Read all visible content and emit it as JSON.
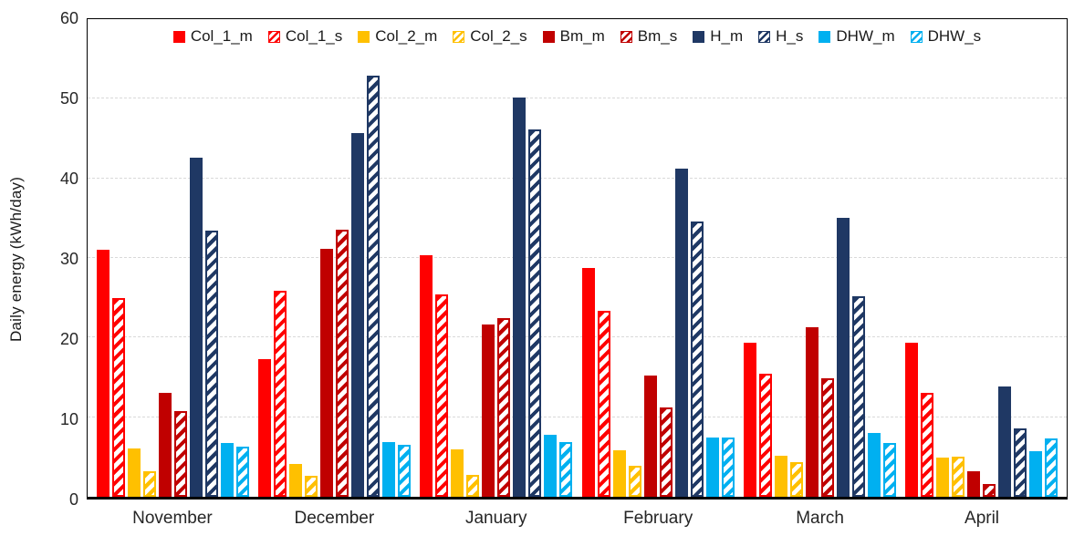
{
  "chart_data": {
    "type": "bar",
    "title": "",
    "xlabel": "",
    "ylabel": "Daily energy (kWh/day)",
    "ylim": [
      0,
      60
    ],
    "yticks": [
      0,
      10,
      20,
      30,
      40,
      50,
      60
    ],
    "grid": true,
    "gridline_style": "dashed",
    "legend_position": "top",
    "categories": [
      "November",
      "December",
      "January",
      "February",
      "March",
      "April"
    ],
    "series": [
      {
        "name": "Col_1_m",
        "color": "#FF0000",
        "pattern": "solid",
        "values": [
          31.0,
          17.3,
          30.4,
          28.7,
          19.4,
          19.3
        ]
      },
      {
        "name": "Col_1_s",
        "color": "#FF0000",
        "pattern": "hatch",
        "values": [
          25.0,
          25.9,
          25.4,
          23.4,
          15.5,
          13.1
        ]
      },
      {
        "name": "Col_2_m",
        "color": "#FFC000",
        "pattern": "solid",
        "values": [
          6.1,
          4.1,
          6.0,
          5.9,
          5.1,
          4.9
        ]
      },
      {
        "name": "Col_2_s",
        "color": "#FFC000",
        "pattern": "hatch",
        "values": [
          3.2,
          2.6,
          2.8,
          3.9,
          4.4,
          5.0
        ]
      },
      {
        "name": "Bm_m",
        "color": "#C00000",
        "pattern": "solid",
        "values": [
          13.0,
          31.1,
          21.6,
          15.2,
          21.3,
          3.2
        ]
      },
      {
        "name": "Bm_s",
        "color": "#C00000",
        "pattern": "hatch",
        "values": [
          10.8,
          33.5,
          22.4,
          11.2,
          14.9,
          1.6
        ]
      },
      {
        "name": "H_m",
        "color": "#1F3864",
        "pattern": "solid",
        "values": [
          42.6,
          45.7,
          50.2,
          41.2,
          35.0,
          13.9
        ]
      },
      {
        "name": "H_s",
        "color": "#1F3864",
        "pattern": "hatch",
        "values": [
          33.4,
          52.9,
          46.2,
          34.6,
          25.2,
          8.6
        ]
      },
      {
        "name": "DHW_m",
        "color": "#00B0F0",
        "pattern": "solid",
        "values": [
          6.7,
          6.9,
          7.8,
          7.4,
          8.0,
          5.7
        ]
      },
      {
        "name": "DHW_s",
        "color": "#00B0F0",
        "pattern": "hatch",
        "values": [
          6.3,
          6.5,
          6.9,
          7.4,
          6.8,
          7.3
        ]
      }
    ],
    "colors": {
      "plot_border": "#000000",
      "gridline": "#d9d9d9",
      "axis_text": "#262626",
      "background": "#ffffff"
    }
  }
}
